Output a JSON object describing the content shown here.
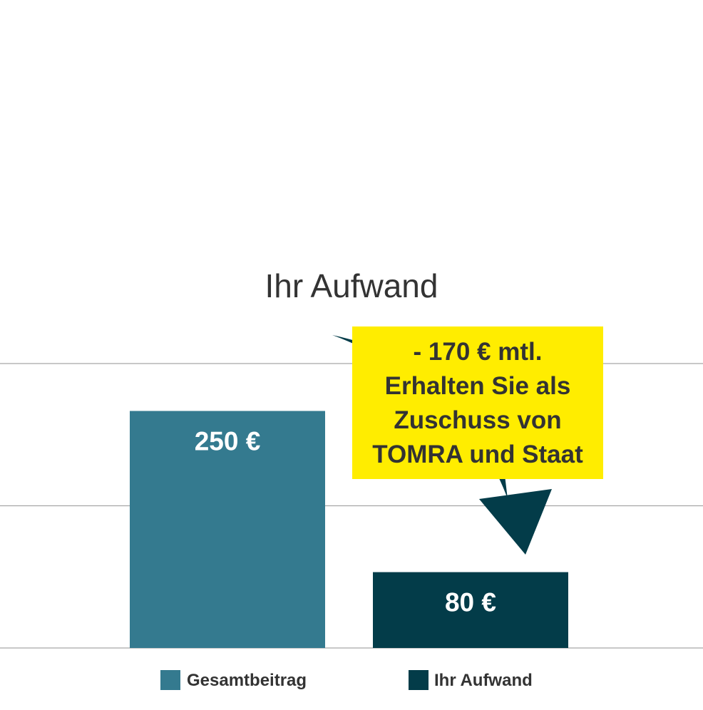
{
  "chart_data": {
    "type": "bar",
    "title": "Ihr Aufwand",
    "categories": [
      "Gesamtbeitrag",
      "Ihr Aufwand"
    ],
    "values": [
      250,
      80
    ],
    "data_labels": [
      "250 €",
      "80 €"
    ],
    "colors": [
      "#347a8f",
      "#033c49"
    ],
    "ylim": [
      0,
      300
    ],
    "gridlines": true,
    "legend": {
      "placement": "bottom",
      "entries": [
        "Gesamtbeitrag",
        "Ihr Aufwand"
      ]
    },
    "annotation": {
      "lines": [
        "- 170 € mtl.",
        "Erhalten Sie als",
        "Zuschuss von",
        "TOMRA und Staat"
      ],
      "background": "#ffed00",
      "arrow_color": "#033c49"
    }
  }
}
